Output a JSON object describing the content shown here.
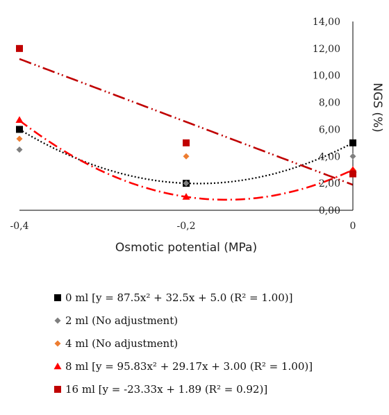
{
  "chart_data": {
    "type": "scatter",
    "title": "",
    "xlabel": "Osmotic potential  (MPa)",
    "ylabel": "NGS (%)",
    "xlim": [
      -0.4,
      0
    ],
    "ylim": [
      0,
      14
    ],
    "x_ticks": [
      "-0,4",
      "-0,2",
      "0"
    ],
    "y_ticks": [
      "0,00",
      "2,00",
      "4,00",
      "6,00",
      "8,00",
      "10,00",
      "12,00",
      "14,00"
    ],
    "y_axis_side": "right",
    "legend_position": "bottom",
    "series": [
      {
        "name": "0 ml [y = 87.5x² + 32.5x + 5.0 (R² = 1.00)]",
        "marker": "square",
        "color": "#000000",
        "x": [
          -0.4,
          -0.2,
          0
        ],
        "y": [
          6.0,
          2.0,
          5.0
        ],
        "trendline": {
          "type": "quadratic",
          "coefficients": [
            87.5,
            32.5,
            5.0
          ],
          "style": "dotted",
          "color": "#000000"
        }
      },
      {
        "name": "2 ml (No adjustment)",
        "marker": "diamond",
        "color": "#7f7f7f",
        "x": [
          -0.4,
          -0.2,
          0
        ],
        "y": [
          4.5,
          2.0,
          4.0
        ]
      },
      {
        "name": "4 ml (No adjustment)",
        "marker": "diamond",
        "color": "#ed7d31",
        "x": [
          -0.4,
          -0.2,
          0
        ],
        "y": [
          5.3,
          4.0,
          3.0
        ]
      },
      {
        "name": "8 ml [y = 95.83x² + 29.17x + 3.00 (R² = 1.00)]",
        "marker": "triangle",
        "color": "#ff0000",
        "x": [
          -0.4,
          -0.2,
          0
        ],
        "y": [
          6.7,
          1.0,
          3.0
        ],
        "trendline": {
          "type": "quadratic",
          "coefficients": [
            95.83,
            29.17,
            3.0
          ],
          "style": "dash-dot",
          "color": "#ff0000"
        }
      },
      {
        "name": "16 ml [y = -23.33x + 1.89 (R² = 0.92)]",
        "marker": "square",
        "color": "#c00000",
        "x": [
          -0.4,
          -0.2,
          0
        ],
        "y": [
          12.0,
          5.0,
          2.7
        ],
        "trendline": {
          "type": "linear",
          "coefficients": [
            -23.33,
            1.89
          ],
          "style": "dash-dot-dot",
          "color": "#c00000"
        }
      }
    ]
  }
}
